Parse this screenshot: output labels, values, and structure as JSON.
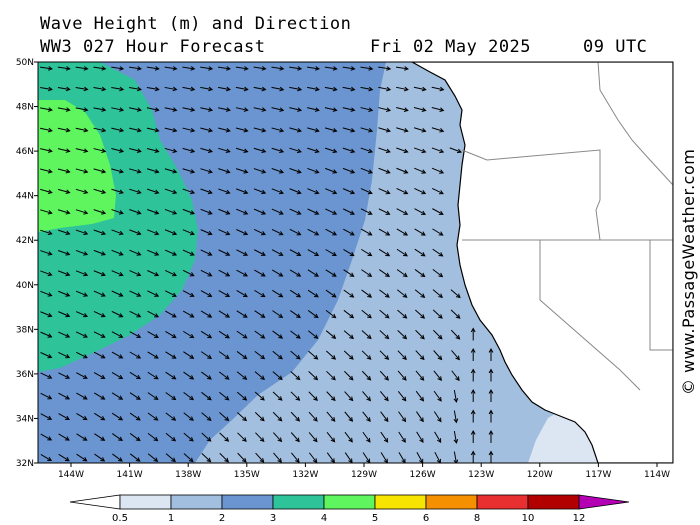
{
  "header": {
    "title": "Wave Height (m) and Direction",
    "model": "WW3 027 Hour Forecast",
    "date": "Fri 02 May 2025",
    "time": "09 UTC"
  },
  "credit": "© www.PassageWeather.com",
  "map": {
    "lat_labels": [
      "50N",
      "48N",
      "46N",
      "44N",
      "42N",
      "40N",
      "38N",
      "36N",
      "34N",
      "32N"
    ],
    "lon_labels": [
      "144W",
      "141W",
      "138W",
      "135W",
      "132W",
      "129W",
      "126W",
      "123W",
      "120W",
      "117W",
      "114W"
    ],
    "lat_range": [
      32,
      50
    ],
    "lon_range": [
      -146,
      -114
    ]
  },
  "legend": {
    "labels": [
      "0.5",
      "1",
      "2",
      "3",
      "4",
      "5",
      "6",
      "8",
      "10",
      "12"
    ],
    "colors": [
      "#ffffff",
      "#dce6f2",
      "#a3bfdf",
      "#6a95d0",
      "#2fc39a",
      "#5ef55e",
      "#f7e400",
      "#f59100",
      "#e83030",
      "#b20000",
      "#b400b4"
    ]
  }
}
